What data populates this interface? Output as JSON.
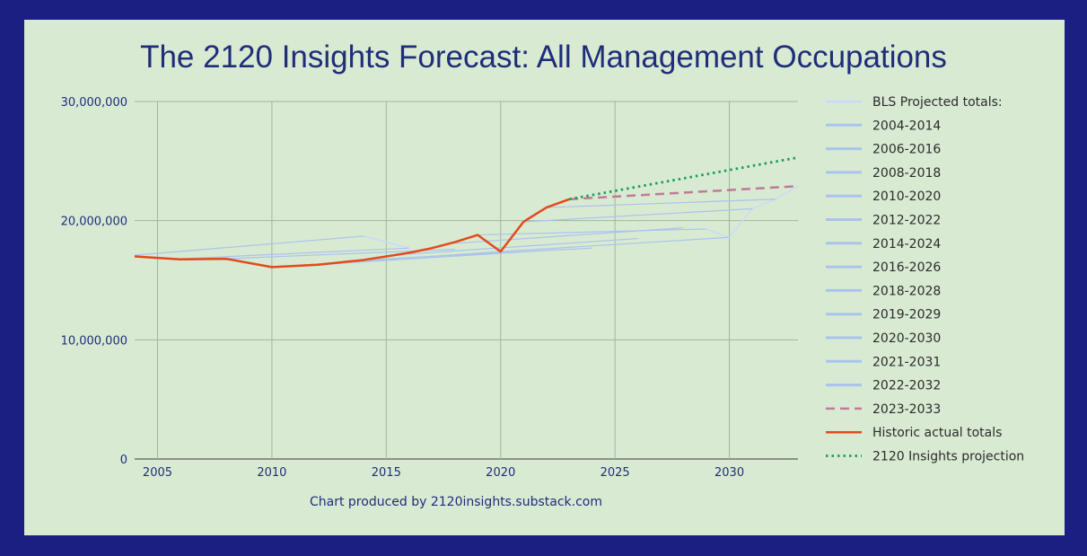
{
  "chart_data": {
    "type": "line",
    "title": "The 2120 Insights Forecast: All Management Occupations",
    "footnote": "Chart produced by 2120insights.substack.com",
    "xlabel": "",
    "ylabel": "",
    "xlim": [
      2004,
      2033
    ],
    "ylim": [
      0,
      30000000
    ],
    "x_ticks": [
      2005,
      2010,
      2015,
      2020,
      2025,
      2030
    ],
    "y_ticks": [
      0,
      10000000,
      20000000,
      30000000
    ],
    "y_tick_labels": [
      "0",
      "10,000,000",
      "20,000,000",
      "30,000,000"
    ],
    "grid": true,
    "legend_placement": "right",
    "legend_header": "BLS Projected totals:",
    "series": [
      {
        "name": "2004-2014",
        "style": "bls",
        "color": "#a9c4ec",
        "x": [
          2004,
          2014
        ],
        "y": [
          17100000,
          18700000
        ]
      },
      {
        "name": "2006-2016",
        "style": "bls",
        "color": "#a9c4ec",
        "x": [
          2006,
          2016
        ],
        "y": [
          16800000,
          17700000
        ]
      },
      {
        "name": "2008-2018",
        "style": "bls",
        "color": "#a9c4ec",
        "x": [
          2008,
          2018
        ],
        "y": [
          16800000,
          17600000
        ]
      },
      {
        "name": "2010-2020",
        "style": "bls",
        "color": "#a9c4ec",
        "x": [
          2010,
          2020
        ],
        "y": [
          16100000,
          17400000
        ]
      },
      {
        "name": "2012-2022",
        "style": "bls",
        "color": "#a9c4ec",
        "x": [
          2012,
          2022
        ],
        "y": [
          16300000,
          17500000
        ]
      },
      {
        "name": "2014-2024",
        "style": "bls",
        "color": "#a9c4ec",
        "x": [
          2014,
          2024
        ],
        "y": [
          16700000,
          17700000
        ]
      },
      {
        "name": "2016-2026",
        "style": "bls",
        "color": "#a9c4ec",
        "x": [
          2016,
          2026
        ],
        "y": [
          17200000,
          18500000
        ]
      },
      {
        "name": "2018-2028",
        "style": "bls",
        "color": "#a9c4ec",
        "x": [
          2018,
          2028
        ],
        "y": [
          18100000,
          19400000
        ]
      },
      {
        "name": "2019-2029",
        "style": "bls",
        "color": "#a9c4ec",
        "x": [
          2019,
          2029
        ],
        "y": [
          18800000,
          19300000
        ]
      },
      {
        "name": "2020-2030",
        "style": "bls",
        "color": "#a9c4ec",
        "x": [
          2020,
          2030
        ],
        "y": [
          17400000,
          18600000
        ]
      },
      {
        "name": "2021-2031",
        "style": "bls",
        "color": "#a9c4ec",
        "x": [
          2021,
          2031
        ],
        "y": [
          19900000,
          21000000
        ]
      },
      {
        "name": "2022-2032",
        "style": "bls",
        "color": "#a9c4ec",
        "x": [
          2022,
          2032
        ],
        "y": [
          21100000,
          21800000
        ]
      },
      {
        "name": "2023-2033",
        "style": "dashed",
        "color": "#c07a9a",
        "x": [
          2023,
          2033
        ],
        "y": [
          21800000,
          22900000
        ]
      },
      {
        "name": "Historic actual totals",
        "style": "solid",
        "color": "#e24a1b",
        "x": [
          2004,
          2006,
          2008,
          2010,
          2012,
          2014,
          2016,
          2017,
          2018,
          2019,
          2020,
          2021,
          2022,
          2023
        ],
        "y": [
          17000000,
          16750000,
          16800000,
          16100000,
          16300000,
          16700000,
          17300000,
          17700000,
          18200000,
          18800000,
          17400000,
          19900000,
          21100000,
          21800000
        ]
      },
      {
        "name": "2120 Insights projection",
        "style": "dotted",
        "color": "#1aa05a",
        "x": [
          2023,
          2033
        ],
        "y": [
          21800000,
          25300000
        ]
      }
    ],
    "extra_lines": [
      {
        "color": "#c9dcf6",
        "x": [
          2014,
          2016
        ],
        "y": [
          18700000,
          17700000
        ]
      },
      {
        "color": "#c9dcf6",
        "x": [
          2029,
          2030,
          2031,
          2032,
          2033
        ],
        "y": [
          19300000,
          18600000,
          21000000,
          21800000,
          22900000
        ]
      }
    ]
  }
}
